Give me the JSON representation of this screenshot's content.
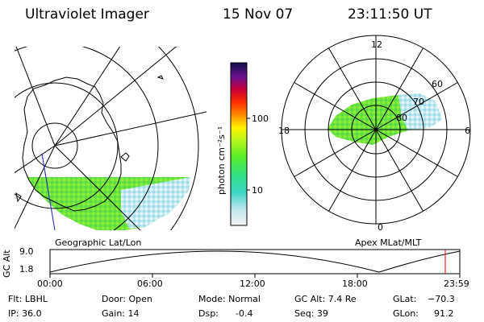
{
  "header": {
    "instrument": "Ultraviolet Imager",
    "date": "15 Nov 07",
    "time": "23:11:50 UT"
  },
  "left_panel": {
    "caption": "Geographic Lat/Lon"
  },
  "colorbar": {
    "unit_label": "photon cm⁻²s⁻¹",
    "tick_labels": [
      "100",
      "10"
    ]
  },
  "right_panel": {
    "caption": "Apex MLat/MLT",
    "mlt_labels": {
      "top": "12",
      "left": "18",
      "right": "6",
      "bottom": "0"
    },
    "lat_labels": [
      "60",
      "70",
      "80"
    ]
  },
  "altitude_plot": {
    "ylabel": "GC Alt",
    "ytick_labels": [
      "9.0",
      "1.8"
    ],
    "xtick_labels": [
      "00:00",
      "06:00",
      "12:00",
      "18:00",
      "23:59"
    ],
    "current_marker_color": "#ff0000"
  },
  "status": {
    "filter": "Flt: LBHL",
    "ip": "IP: 36.0",
    "door": "Door: Open",
    "gain": "Gain: 14",
    "mode": "Mode: Normal",
    "dsp_label": "Dsp:",
    "dsp_value": "-0.4",
    "gc_alt": "GC Alt: 7.4 Re",
    "seq": "Seq: 39",
    "glat_label": "GLat:",
    "glat_value": "−70.3",
    "glon_label": "GLon:",
    "glon_value": "91.2"
  }
}
